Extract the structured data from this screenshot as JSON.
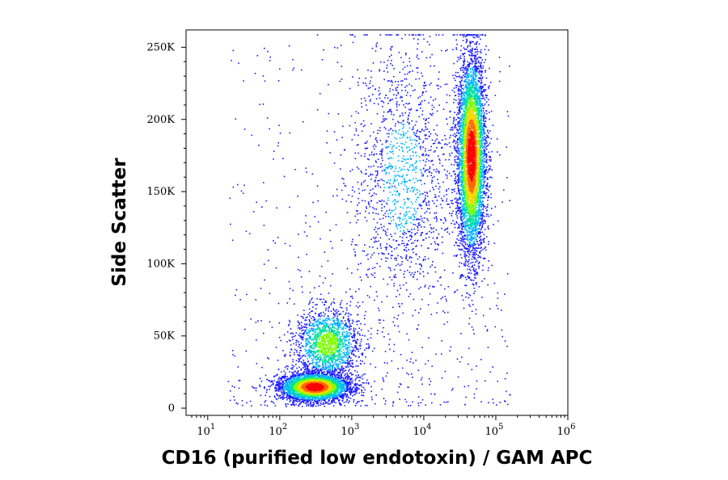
{
  "chart_data": {
    "type": "scatter",
    "title": "",
    "xlabel": "CD16 (purified low endotoxin) / GAM APC",
    "ylabel": "Side Scatter",
    "x_scale": "log",
    "xlim": [
      5,
      1000000
    ],
    "ylim": [
      -5000,
      262000
    ],
    "x_ticks": [
      {
        "value": 10,
        "base": "10",
        "exp": "1"
      },
      {
        "value": 100,
        "base": "10",
        "exp": "2"
      },
      {
        "value": 1000,
        "base": "10",
        "exp": "3"
      },
      {
        "value": 10000,
        "base": "10",
        "exp": "4"
      },
      {
        "value": 100000,
        "base": "10",
        "exp": "5"
      },
      {
        "value": 1000000,
        "base": "10",
        "exp": "6"
      }
    ],
    "y_ticks": [
      {
        "value": 0,
        "label": "0"
      },
      {
        "value": 50000,
        "label": "50K"
      },
      {
        "value": 100000,
        "label": "100K"
      },
      {
        "value": 150000,
        "label": "150K"
      },
      {
        "value": 200000,
        "label": "200K"
      },
      {
        "value": 250000,
        "label": "250K"
      }
    ],
    "grid": false,
    "legend": "none",
    "colormap": [
      "#1a1aff",
      "#00b4ff",
      "#00e0a0",
      "#7fff00",
      "#ffd400",
      "#ff6a00",
      "#ff0000"
    ],
    "populations": [
      {
        "x_center": 300,
        "y_center": 15000,
        "x_spread_decades": 0.25,
        "y_spread": 5000,
        "count": 4200,
        "density": "high"
      },
      {
        "x_center": 450,
        "y_center": 45000,
        "x_spread_decades": 0.22,
        "y_spread": 12000,
        "count": 1600,
        "density": "medium"
      },
      {
        "x_center": 45000,
        "y_center": 175000,
        "x_spread_decades": 0.1,
        "y_spread": 35000,
        "count": 5200,
        "density": "high"
      },
      {
        "x_center": 5000,
        "y_center": 160000,
        "x_spread_decades": 0.35,
        "y_spread": 50000,
        "count": 1400,
        "density": "low"
      }
    ]
  }
}
